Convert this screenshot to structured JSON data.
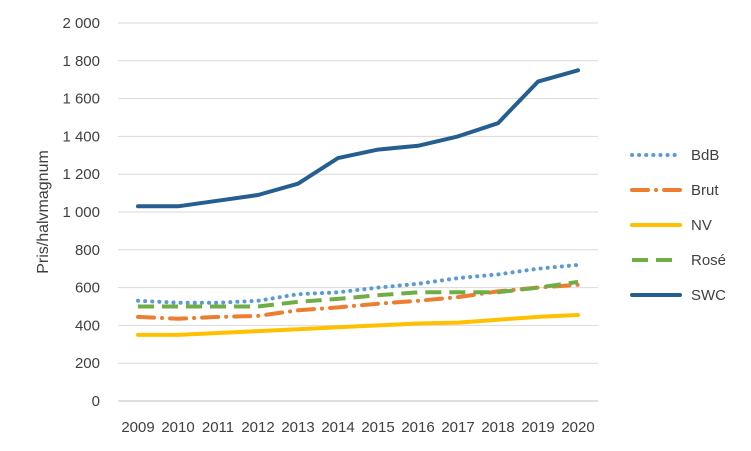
{
  "chart_data": {
    "type": "line",
    "title": "",
    "xlabel": "",
    "ylabel": "Pris/halvmagnum",
    "ylim": [
      0,
      2000
    ],
    "ytick_step": 200,
    "ytick_labels": [
      "0",
      "200",
      "400",
      "600",
      "800",
      "1 000",
      "1 200",
      "1 400",
      "1 600",
      "1 800",
      "2 000"
    ],
    "x": [
      "2009",
      "2010",
      "2011",
      "2012",
      "2013",
      "2014",
      "2015",
      "2016",
      "2017",
      "2018",
      "2019",
      "2020"
    ],
    "grid": "horizontal",
    "legend_position": "right",
    "series": [
      {
        "name": "BdB",
        "color": "#5B9BD5",
        "dash": "dotted",
        "values": [
          530,
          520,
          520,
          530,
          565,
          575,
          600,
          620,
          650,
          670,
          700,
          720
        ]
      },
      {
        "name": "Brut",
        "color": "#ED7D31",
        "dash": "dashdot",
        "values": [
          445,
          435,
          445,
          450,
          480,
          495,
          515,
          530,
          550,
          580,
          600,
          615
        ]
      },
      {
        "name": "NV",
        "color": "#FFC000",
        "dash": "solid",
        "values": [
          350,
          350,
          360,
          370,
          380,
          390,
          400,
          410,
          415,
          430,
          445,
          455
        ]
      },
      {
        "name": "Rosé",
        "color": "#70AD47",
        "dash": "dashed",
        "values": [
          500,
          500,
          500,
          500,
          525,
          540,
          560,
          575,
          575,
          575,
          600,
          630
        ]
      },
      {
        "name": "SWC",
        "color": "#255E91",
        "dash": "solid",
        "values": [
          1030,
          1030,
          1060,
          1090,
          1150,
          1285,
          1330,
          1350,
          1400,
          1470,
          1690,
          1750
        ]
      }
    ]
  }
}
